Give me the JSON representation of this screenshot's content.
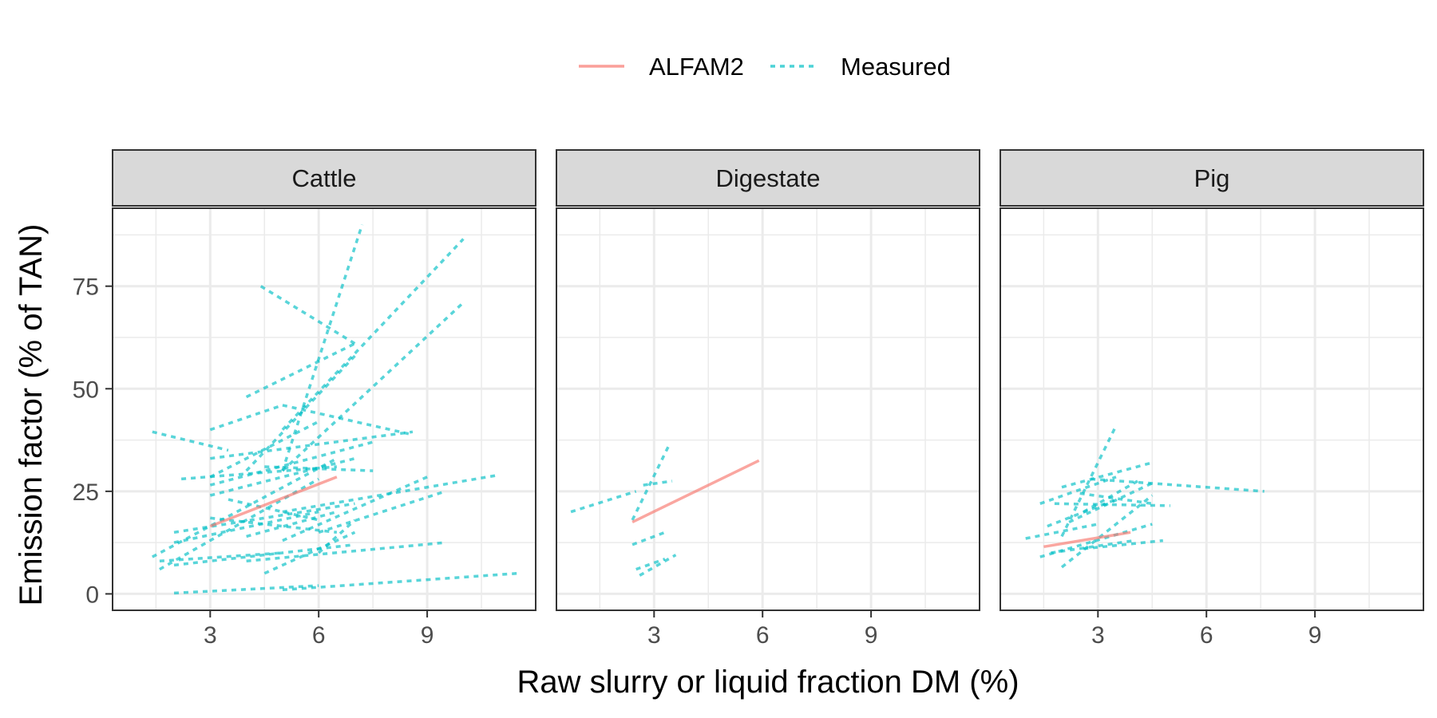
{
  "chart_data": {
    "type": "line",
    "xlabel": "Raw slurry or liquid fraction DM (%)",
    "ylabel": "Emission factor (% of TAN)",
    "x_ticks": [
      3,
      6,
      9
    ],
    "y_ticks": [
      0,
      25,
      50,
      75
    ],
    "xlim": [
      0.3,
      12.0
    ],
    "ylim": [
      -4,
      94
    ],
    "grid": true,
    "legend": {
      "position": "top",
      "entries": [
        {
          "name": "ALFAM2",
          "color": "#F8766D",
          "linetype": "solid"
        },
        {
          "name": "Measured",
          "color": "#00BFC4",
          "linetype": "dashed"
        }
      ]
    },
    "facets": [
      {
        "label": "Cattle",
        "series": [
          {
            "name": "ALFAM2",
            "segments": [
              [
                [
                  3.0,
                  16.5
                ],
                [
                  6.5,
                  28.5
                ]
              ]
            ]
          },
          {
            "name": "Measured",
            "segments": [
              [
                [
                  1.4,
                  39.5
                ],
                [
                  3.5,
                  35.0
                ]
              ],
              [
                [
                  3.0,
                  40.0
                ],
                [
                  5.0,
                  46.0
                ]
              ],
              [
                [
                  4.4,
                  75.0
                ],
                [
                  7.0,
                  61.0
                ]
              ],
              [
                [
                  5.0,
                  30.0
                ],
                [
                  7.2,
                  90.0
                ]
              ],
              [
                [
                  4.0,
                  30.0
                ],
                [
                  7.0,
                  58.0
                ]
              ],
              [
                [
                  5.0,
                  40.0
                ],
                [
                  10.0,
                  86.5
                ]
              ],
              [
                [
                  5.0,
                  30.0
                ],
                [
                  10.0,
                  71.0
                ]
              ],
              [
                [
                  4.0,
                  48.0
                ],
                [
                  7.0,
                  61.0
                ]
              ],
              [
                [
                  5.0,
                  46.0
                ],
                [
                  8.5,
                  39.0
                ]
              ],
              [
                [
                  3.0,
                  33.0
                ],
                [
                  8.6,
                  39.5
                ]
              ],
              [
                [
                  3.0,
                  28.5
                ],
                [
                  6.0,
                  42.0
                ]
              ],
              [
                [
                  2.2,
                  28.0
                ],
                [
                  6.5,
                  31.0
                ]
              ],
              [
                [
                  3.0,
                  24.0
                ],
                [
                  7.0,
                  33.0
                ]
              ],
              [
                [
                  4.5,
                  31.0
                ],
                [
                  7.5,
                  30.0
                ]
              ],
              [
                [
                  3.0,
                  26.5
                ],
                [
                  7.5,
                  37.0
                ]
              ],
              [
                [
                  1.4,
                  9.0
                ],
                [
                  6.5,
                  33.0
                ]
              ],
              [
                [
                  1.6,
                  6.0
                ],
                [
                  6.0,
                  28.0
                ]
              ],
              [
                [
                  2.0,
                  15.0
                ],
                [
                  7.0,
                  22.0
                ]
              ],
              [
                [
                  3.5,
                  23.0
                ],
                [
                  6.0,
                  18.0
                ]
              ],
              [
                [
                  5.0,
                  13.0
                ],
                [
                  9.0,
                  28.5
                ]
              ],
              [
                [
                  5.0,
                  20.0
                ],
                [
                  11.0,
                  29.0
                ]
              ],
              [
                [
                  6.0,
                  15.0
                ],
                [
                  9.5,
                  25.0
                ]
              ],
              [
                [
                  3.0,
                  18.5
                ],
                [
                  6.5,
                  15.0
                ]
              ],
              [
                [
                  2.0,
                  12.5
                ],
                [
                  6.0,
                  20.0
                ]
              ],
              [
                [
                  4.0,
                  14.0
                ],
                [
                  6.5,
                  20.0
                ]
              ],
              [
                [
                  1.6,
                  8.0
                ],
                [
                  5.0,
                  10.0
                ]
              ],
              [
                [
                  2.0,
                  7.0
                ],
                [
                  7.0,
                  12.0
                ]
              ],
              [
                [
                  4.5,
                  5.0
                ],
                [
                  7.0,
                  15.0
                ]
              ],
              [
                [
                  4.0,
                  8.0
                ],
                [
                  9.5,
                  12.5
                ]
              ],
              [
                [
                  6.0,
                  10.0
                ],
                [
                  7.0,
                  18.0
                ]
              ],
              [
                [
                  2.0,
                  0.2
                ],
                [
                  6.0,
                  2.0
                ]
              ],
              [
                [
                  5.0,
                  1.0
                ],
                [
                  11.5,
                  5.0
                ]
              ]
            ]
          }
        ]
      },
      {
        "label": "Digestate",
        "series": [
          {
            "name": "ALFAM2",
            "segments": [
              [
                [
                  2.4,
                  17.5
                ],
                [
                  5.9,
                  32.5
                ]
              ]
            ]
          },
          {
            "name": "Measured",
            "segments": [
              [
                [
                  0.7,
                  20.0
                ],
                [
                  2.5,
                  25.0
                ]
              ],
              [
                [
                  2.4,
                  18.0
                ],
                [
                  3.4,
                  36.0
                ]
              ],
              [
                [
                  2.7,
                  26.5
                ],
                [
                  3.5,
                  27.5
                ]
              ],
              [
                [
                  2.4,
                  12.0
                ],
                [
                  3.3,
                  15.0
                ]
              ],
              [
                [
                  2.5,
                  6.0
                ],
                [
                  3.3,
                  8.5
                ]
              ],
              [
                [
                  2.6,
                  4.5
                ],
                [
                  3.6,
                  9.5
                ]
              ]
            ]
          }
        ]
      },
      {
        "label": "Pig",
        "series": [
          {
            "name": "ALFAM2",
            "segments": [
              [
                [
                  1.5,
                  11.5
                ],
                [
                  3.9,
                  15.0
                ]
              ]
            ]
          },
          {
            "name": "Measured",
            "segments": [
              [
                [
                  2.0,
                  14.0
                ],
                [
                  3.5,
                  41.0
                ]
              ],
              [
                [
                  2.0,
                  26.0
                ],
                [
                  4.5,
                  32.0
                ]
              ],
              [
                [
                  2.8,
                  28.0
                ],
                [
                  7.6,
                  25.0
                ]
              ],
              [
                [
                  1.4,
                  22.0
                ],
                [
                  3.5,
                  28.5
                ]
              ],
              [
                [
                  2.5,
                  24.5
                ],
                [
                  4.5,
                  22.0
                ]
              ],
              [
                [
                  1.8,
                  22.0
                ],
                [
                  5.0,
                  21.5
                ]
              ],
              [
                [
                  2.2,
                  17.5
                ],
                [
                  4.5,
                  27.0
                ]
              ],
              [
                [
                  2.6,
                  20.0
                ],
                [
                  4.2,
                  28.0
                ]
              ],
              [
                [
                  1.6,
                  16.5
                ],
                [
                  3.5,
                  23.0
                ]
              ],
              [
                [
                  1.0,
                  13.5
                ],
                [
                  3.0,
                  17.0
                ]
              ],
              [
                [
                  1.4,
                  9.0
                ],
                [
                  4.5,
                  17.0
                ]
              ],
              [
                [
                  1.7,
                  10.0
                ],
                [
                  4.0,
                  13.0
                ]
              ],
              [
                [
                  2.6,
                  11.0
                ],
                [
                  4.8,
                  13.0
                ]
              ],
              [
                [
                  2.0,
                  6.5
                ],
                [
                  4.5,
                  24.0
                ]
              ]
            ]
          }
        ]
      }
    ]
  }
}
